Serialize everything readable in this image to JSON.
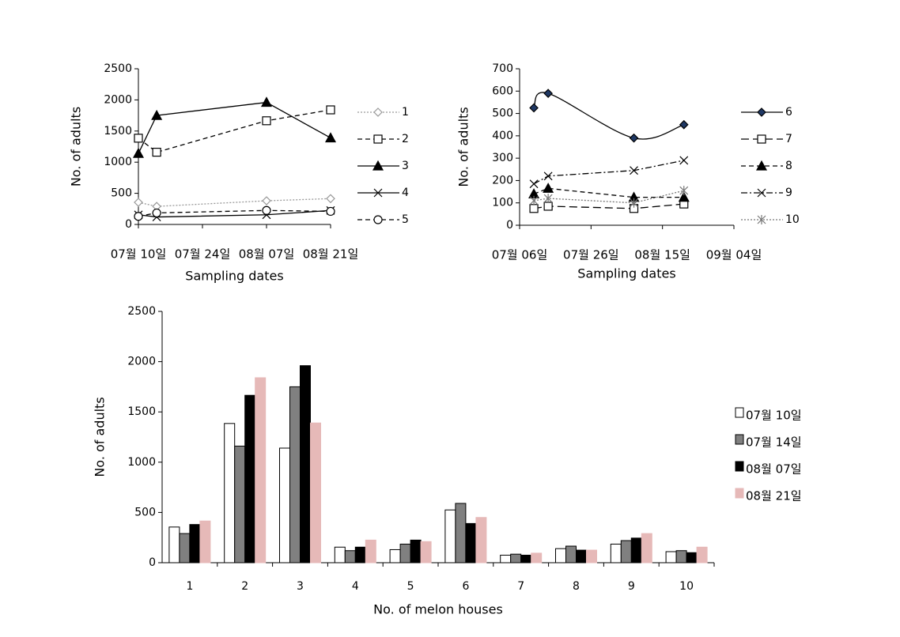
{
  "chart_data": [
    {
      "type": "line",
      "ylabel": "No. of adults",
      "xlabel": "Sampling dates",
      "x": [
        "07월 10일",
        "07월 14일",
        "08월 07일",
        "08월 21일"
      ],
      "xlim": [
        "07월 10일",
        "08월 21일"
      ],
      "xticks": [
        "07월 10일",
        "07월 24일",
        "08월 07일",
        "08월 21일"
      ],
      "ylim": [
        0,
        2500
      ],
      "yticks": [
        0,
        500,
        1000,
        1500,
        2000,
        2500
      ],
      "series": [
        {
          "name": "1",
          "color": "#999999",
          "dash": "dotted",
          "marker": "diamond",
          "values": [
            355,
            290,
            380,
            415
          ]
        },
        {
          "name": "2",
          "color": "#000000",
          "dash": "dashed",
          "marker": "square",
          "values": [
            1385,
            1160,
            1665,
            1840
          ]
        },
        {
          "name": "3",
          "color": "#000000",
          "dash": "solid",
          "marker": "triangle",
          "values": [
            1140,
            1750,
            1960,
            1390
          ]
        },
        {
          "name": "4",
          "color": "#000000",
          "dash": "solid",
          "marker": "x",
          "values": [
            155,
            120,
            155,
            225
          ]
        },
        {
          "name": "5",
          "color": "#000000",
          "dash": "dashed",
          "marker": "circle",
          "values": [
            130,
            185,
            225,
            210
          ]
        }
      ]
    },
    {
      "type": "line",
      "ylabel": "No. of adults",
      "xlabel": "Sampling dates",
      "x": [
        "07월 10일",
        "07월 14일",
        "08월 07일",
        "08월 21일"
      ],
      "xlim": [
        "07월 06일",
        "09월 04일"
      ],
      "xticks": [
        "07월 06일",
        "07월 26일",
        "08월 15일",
        "09월 04일"
      ],
      "ylim": [
        0,
        700
      ],
      "yticks": [
        0,
        100,
        200,
        300,
        400,
        500,
        600,
        700
      ],
      "series": [
        {
          "name": "6",
          "color": "#000000",
          "dash": "solid",
          "marker": "diamond-filled",
          "smooth": true,
          "values": [
            525,
            590,
            390,
            450
          ]
        },
        {
          "name": "7",
          "color": "#000000",
          "dash": "longdash",
          "marker": "square",
          "values": [
            75,
            85,
            75,
            95
          ]
        },
        {
          "name": "8",
          "color": "#000000",
          "dash": "dashed",
          "marker": "triangle",
          "values": [
            140,
            165,
            125,
            125
          ]
        },
        {
          "name": "9",
          "color": "#000000",
          "dash": "dashdot",
          "marker": "x",
          "values": [
            185,
            220,
            245,
            290
          ]
        },
        {
          "name": "10",
          "color": "#777777",
          "dash": "dotted",
          "marker": "star",
          "values": [
            110,
            120,
            100,
            155
          ]
        }
      ]
    },
    {
      "type": "bar",
      "ylabel": "No. of adults",
      "xlabel": "No. of melon houses",
      "categories": [
        "1",
        "2",
        "3",
        "4",
        "5",
        "6",
        "7",
        "8",
        "9",
        "10"
      ],
      "ylim": [
        0,
        2500
      ],
      "yticks": [
        0,
        500,
        1000,
        1500,
        2000,
        2500
      ],
      "series": [
        {
          "name": "07월 10일",
          "color": "#ffffff",
          "values": [
            355,
            1385,
            1140,
            155,
            130,
            525,
            75,
            140,
            185,
            110
          ]
        },
        {
          "name": "07월 14일",
          "color": "#808080",
          "values": [
            290,
            1160,
            1750,
            120,
            185,
            590,
            85,
            165,
            220,
            120
          ]
        },
        {
          "name": "08월 07일",
          "color": "#000000",
          "values": [
            380,
            1665,
            1960,
            155,
            225,
            390,
            75,
            125,
            245,
            100
          ]
        },
        {
          "name": "08월 21일",
          "color": "#e6b9b8",
          "values": [
            415,
            1840,
            1390,
            225,
            210,
            450,
            95,
            125,
            290,
            155
          ]
        }
      ]
    }
  ]
}
